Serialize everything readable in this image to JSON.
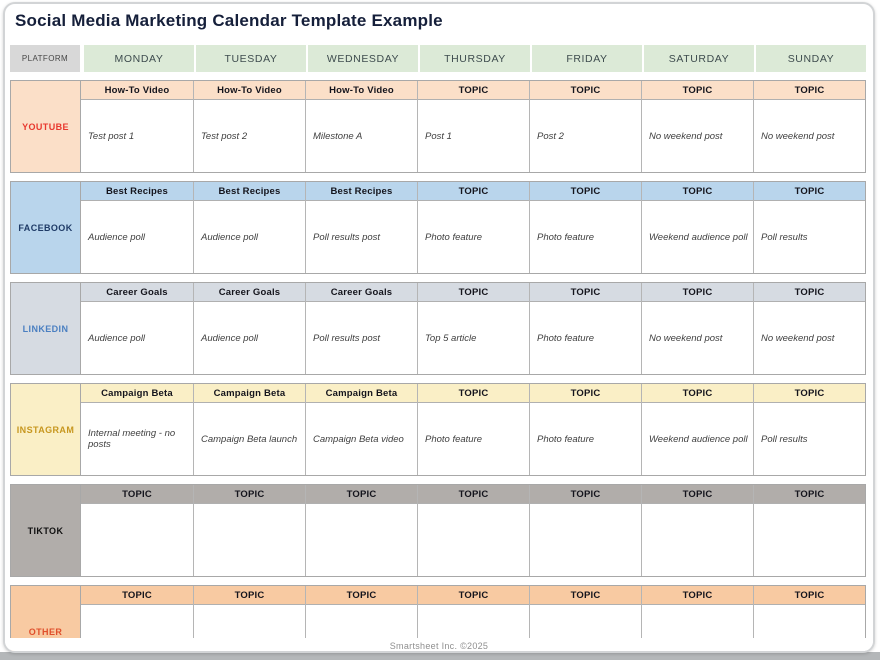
{
  "title": "Social Media Marketing Calendar Template Example",
  "header": {
    "platform_label": "PLATFORM",
    "days": [
      "MONDAY",
      "TUESDAY",
      "WEDNESDAY",
      "THURSDAY",
      "FRIDAY",
      "SATURDAY",
      "SUNDAY"
    ],
    "platform_header_bg": "#d8d8d8",
    "day_header_bg": "#dcead7"
  },
  "platforms": [
    {
      "name": "YOUTUBE",
      "colors": {
        "bg": "#fbdfc8",
        "text": "#e8382e"
      },
      "topics": [
        "How-To Video",
        "How-To Video",
        "How-To Video",
        "TOPIC",
        "TOPIC",
        "TOPIC",
        "TOPIC"
      ],
      "posts": [
        "Test post 1",
        "Test post 2",
        "Milestone A",
        "Post 1",
        "Post 2",
        "No weekend post",
        "No weekend post"
      ]
    },
    {
      "name": "FACEBOOK",
      "colors": {
        "bg": "#b9d5ec",
        "text": "#1e3a66"
      },
      "topics": [
        "Best Recipes",
        "Best Recipes",
        "Best Recipes",
        "TOPIC",
        "TOPIC",
        "TOPIC",
        "TOPIC"
      ],
      "posts": [
        "Audience poll",
        "Audience poll",
        "Poll results post",
        "Photo feature",
        "Photo feature",
        "Weekend audience poll",
        "Poll results"
      ]
    },
    {
      "name": "LINKEDIN",
      "colors": {
        "bg": "#d6dbe2",
        "text": "#4a7fc1"
      },
      "topics": [
        "Career Goals",
        "Career Goals",
        "Career Goals",
        "TOPIC",
        "TOPIC",
        "TOPIC",
        "TOPIC"
      ],
      "posts": [
        "Audience poll",
        "Audience poll",
        "Poll results post",
        "Top 5 article",
        "Photo feature",
        "No weekend post",
        "No weekend post"
      ]
    },
    {
      "name": "INSTAGRAM",
      "colors": {
        "bg": "#faefc6",
        "text": "#c7971f"
      },
      "topics": [
        "Campaign Beta",
        "Campaign Beta",
        "Campaign Beta",
        "TOPIC",
        "TOPIC",
        "TOPIC",
        "TOPIC"
      ],
      "posts": [
        "Internal meeting - no posts",
        "Campaign Beta launch",
        "Campaign Beta video",
        "Photo feature",
        "Photo feature",
        "Weekend audience poll",
        "Poll results"
      ]
    },
    {
      "name": "TIKTOK",
      "colors": {
        "bg": "#b1adaa",
        "text": "#111111"
      },
      "topics": [
        "TOPIC",
        "TOPIC",
        "TOPIC",
        "TOPIC",
        "TOPIC",
        "TOPIC",
        "TOPIC"
      ],
      "posts": [
        "",
        "",
        "",
        "",
        "",
        "",
        ""
      ]
    },
    {
      "name": "OTHER",
      "colors": {
        "bg": "#f8caa2",
        "text": "#df4f2b"
      },
      "topics": [
        "TOPIC",
        "TOPIC",
        "TOPIC",
        "TOPIC",
        "TOPIC",
        "TOPIC",
        "TOPIC"
      ],
      "posts": [
        "",
        "",
        "",
        "",
        "",
        "",
        ""
      ]
    }
  ],
  "footer": {
    "credit": "Smartsheet Inc. ©2025"
  }
}
